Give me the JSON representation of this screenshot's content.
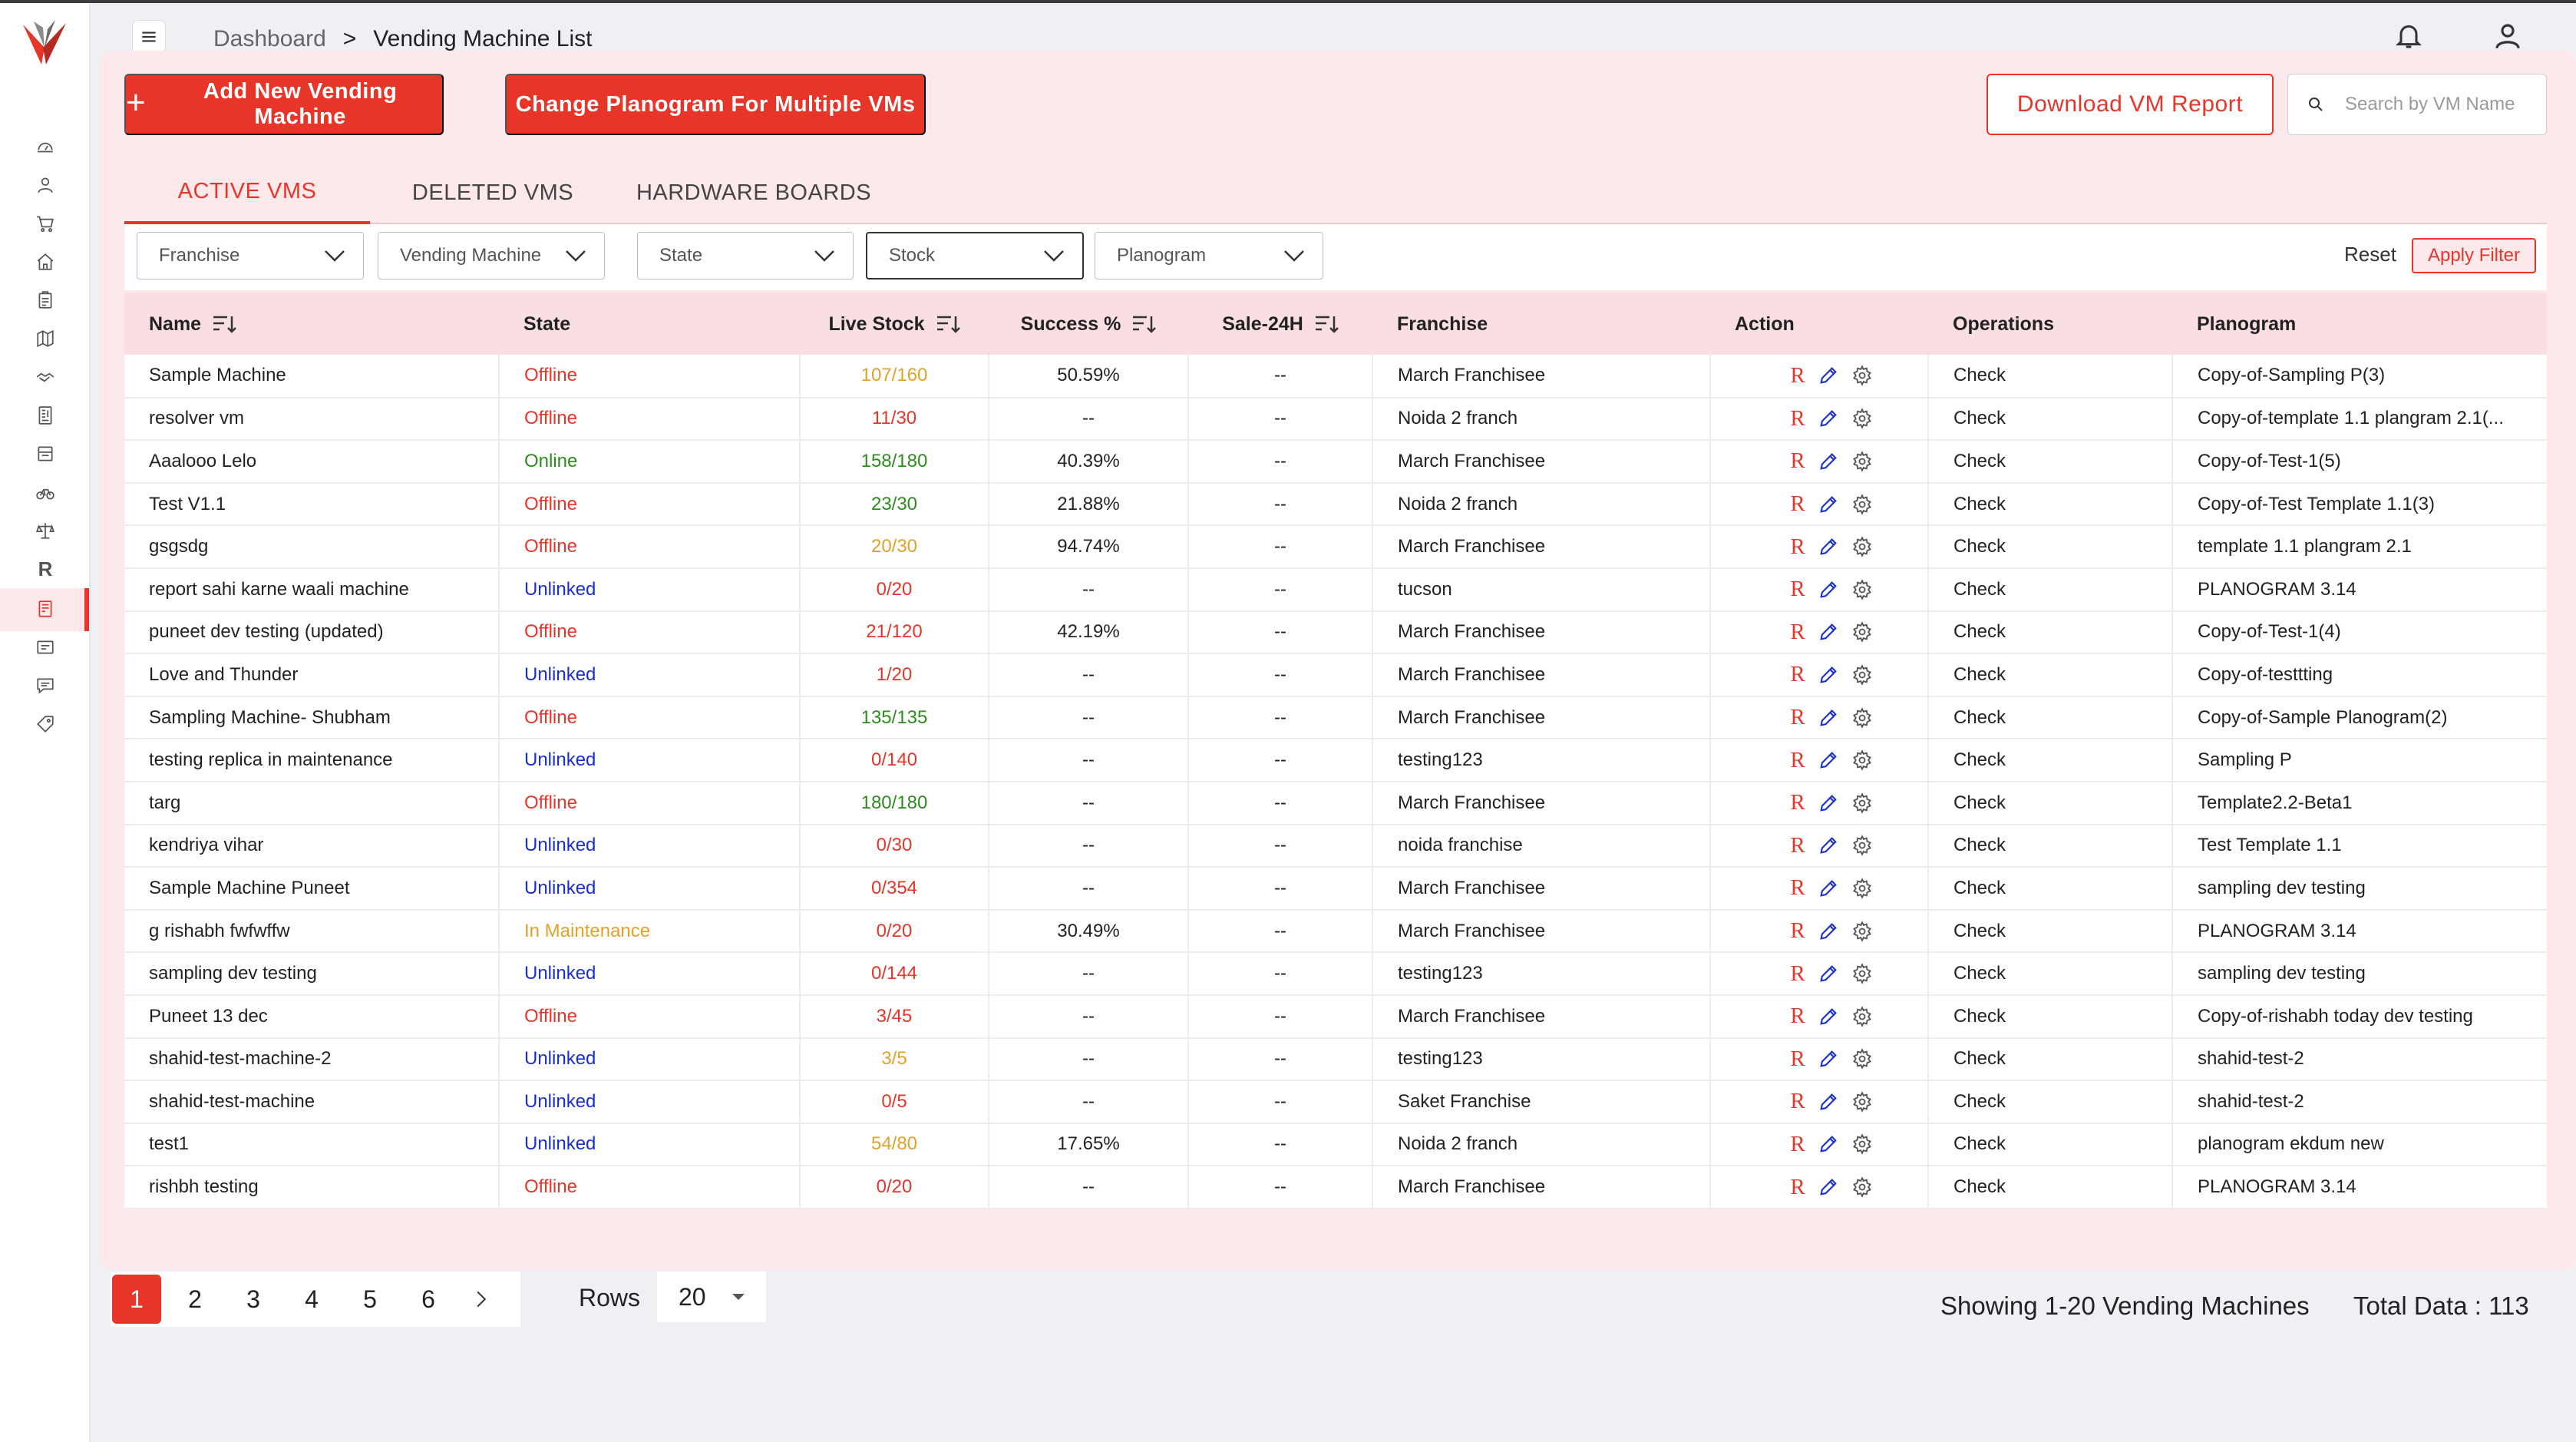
{
  "breadcrumb": {
    "home": "Dashboard",
    "separator": ">",
    "current": "Vending Machine List"
  },
  "toolbar": {
    "add_label": "Add New Vending Machine",
    "change_label": "Change Planogram For Multiple VMs",
    "download_label": "Download VM Report",
    "search_placeholder": "Search by VM Name"
  },
  "tabs": [
    "ACTIVE VMS",
    "DELETED VMS",
    "HARDWARE BOARDS"
  ],
  "filters": {
    "franchise": "Franchise",
    "vending_machine": "Vending Machine",
    "state": "State",
    "stock": "Stock",
    "planogram": "Planogram",
    "reset": "Reset",
    "apply": "Apply Filter"
  },
  "table": {
    "headers": [
      "Name",
      "State",
      "Live Stock",
      "Success %",
      "Sale-24H",
      "Franchise",
      "Action",
      "Operations",
      "Planogram"
    ],
    "action_letter": "R",
    "rows": [
      {
        "name": "Sample Machine",
        "state": "Offline",
        "stock": "107/160",
        "stock_color": "orange",
        "success": "50.59%",
        "sale": "--",
        "franchise": "March Franchisee",
        "ops": "Check",
        "planogram": "Copy-of-Sampling P(3)"
      },
      {
        "name": "resolver vm",
        "state": "Offline",
        "stock": "11/30",
        "stock_color": "red",
        "success": "--",
        "sale": "--",
        "franchise": "Noida 2 franch",
        "ops": "Check",
        "planogram": "Copy-of-template 1.1 plangram 2.1(..."
      },
      {
        "name": "Aaalooo Lelo",
        "state": "Online",
        "stock": "158/180",
        "stock_color": "green",
        "success": "40.39%",
        "sale": "--",
        "franchise": "March Franchisee",
        "ops": "Check",
        "planogram": "Copy-of-Test-1(5)"
      },
      {
        "name": "Test V1.1",
        "state": "Offline",
        "stock": "23/30",
        "stock_color": "green",
        "success": "21.88%",
        "sale": "--",
        "franchise": "Noida 2 franch",
        "ops": "Check",
        "planogram": "Copy-of-Test Template 1.1(3)"
      },
      {
        "name": "gsgsdg",
        "state": "Offline",
        "stock": "20/30",
        "stock_color": "orange",
        "success": "94.74%",
        "sale": "--",
        "franchise": "March Franchisee",
        "ops": "Check",
        "planogram": "template 1.1 plangram 2.1"
      },
      {
        "name": "report sahi karne waali machine",
        "state": "Unlinked",
        "stock": "0/20",
        "stock_color": "red",
        "success": "--",
        "sale": "--",
        "franchise": "tucson",
        "ops": "Check",
        "planogram": "PLANOGRAM 3.14"
      },
      {
        "name": "puneet dev testing (updated)",
        "state": "Offline",
        "stock": "21/120",
        "stock_color": "red",
        "success": "42.19%",
        "sale": "--",
        "franchise": "March Franchisee",
        "ops": "Check",
        "planogram": "Copy-of-Test-1(4)"
      },
      {
        "name": "Love and Thunder",
        "state": "Unlinked",
        "stock": "1/20",
        "stock_color": "red",
        "success": "--",
        "sale": "--",
        "franchise": "March Franchisee",
        "ops": "Check",
        "planogram": "Copy-of-testtting"
      },
      {
        "name": "Sampling Machine- Shubham",
        "state": "Offline",
        "stock": "135/135",
        "stock_color": "green",
        "success": "--",
        "sale": "--",
        "franchise": "March Franchisee",
        "ops": "Check",
        "planogram": "Copy-of-Sample Planogram(2)"
      },
      {
        "name": "testing replica in maintenance",
        "state": "Unlinked",
        "stock": "0/140",
        "stock_color": "red",
        "success": "--",
        "sale": "--",
        "franchise": "testing123",
        "ops": "Check",
        "planogram": "Sampling P"
      },
      {
        "name": "targ",
        "state": "Offline",
        "stock": "180/180",
        "stock_color": "green",
        "success": "--",
        "sale": "--",
        "franchise": "March Franchisee",
        "ops": "Check",
        "planogram": "Template2.2-Beta1"
      },
      {
        "name": "kendriya vihar",
        "state": "Unlinked",
        "stock": "0/30",
        "stock_color": "red",
        "success": "--",
        "sale": "--",
        "franchise": "noida franchise",
        "ops": "Check",
        "planogram": "Test Template 1.1"
      },
      {
        "name": "Sample Machine Puneet",
        "state": "Unlinked",
        "stock": "0/354",
        "stock_color": "red",
        "success": "--",
        "sale": "--",
        "franchise": "March Franchisee",
        "ops": "Check",
        "planogram": "sampling dev testing"
      },
      {
        "name": "g rishabh fwfwffw",
        "state": "In Maintenance",
        "stock": "0/20",
        "stock_color": "red",
        "success": "30.49%",
        "sale": "--",
        "franchise": "March Franchisee",
        "ops": "Check",
        "planogram": "PLANOGRAM 3.14"
      },
      {
        "name": "sampling dev testing",
        "state": "Unlinked",
        "stock": "0/144",
        "stock_color": "red",
        "success": "--",
        "sale": "--",
        "franchise": "testing123",
        "ops": "Check",
        "planogram": "sampling dev testing"
      },
      {
        "name": "Puneet 13 dec",
        "state": "Offline",
        "stock": "3/45",
        "stock_color": "red",
        "success": "--",
        "sale": "--",
        "franchise": "March Franchisee",
        "ops": "Check",
        "planogram": "Copy-of-rishabh today dev testing"
      },
      {
        "name": "shahid-test-machine-2",
        "state": "Unlinked",
        "stock": "3/5",
        "stock_color": "orange",
        "success": "--",
        "sale": "--",
        "franchise": "testing123",
        "ops": "Check",
        "planogram": "shahid-test-2"
      },
      {
        "name": "shahid-test-machine",
        "state": "Unlinked",
        "stock": "0/5",
        "stock_color": "red",
        "success": "--",
        "sale": "--",
        "franchise": "Saket Franchise",
        "ops": "Check",
        "planogram": "shahid-test-2"
      },
      {
        "name": "test1",
        "state": "Unlinked",
        "stock": "54/80",
        "stock_color": "orange",
        "success": "17.65%",
        "sale": "--",
        "franchise": "Noida 2 franch",
        "ops": "Check",
        "planogram": "planogram ekdum new"
      },
      {
        "name": "rishbh testing",
        "state": "Offline",
        "stock": "0/20",
        "stock_color": "red",
        "success": "--",
        "sale": "--",
        "franchise": "March Franchisee",
        "ops": "Check",
        "planogram": "PLANOGRAM 3.14"
      }
    ]
  },
  "pagination": {
    "pages": [
      "1",
      "2",
      "3",
      "4",
      "5",
      "6"
    ],
    "active": "1"
  },
  "rows_selector": {
    "label": "Rows",
    "value": "20"
  },
  "summary": {
    "showing": "Showing 1-20 Vending Machines",
    "total": "Total Data : 113"
  },
  "colors": {
    "accent": "#e8352a",
    "panel": "#fde9ec",
    "online": "#2e8b1e",
    "unlinked": "#1a2fd0",
    "maintenance": "#e0a22a"
  }
}
